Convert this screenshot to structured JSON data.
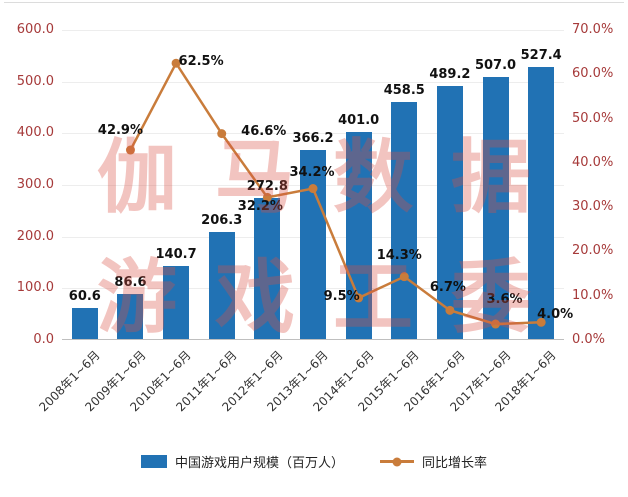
{
  "watermark": {
    "line1": "伽马数据",
    "line2": "游戏工委",
    "color": "#D94F43"
  },
  "chart_data": {
    "type": "combo-bar-line",
    "title": "",
    "categories": [
      "2008年1~6月",
      "2009年1~6月",
      "2010年1~6月",
      "2011年1~6月",
      "2012年1~6月",
      "2013年1~6月",
      "2014年1~6月",
      "2015年1~6月",
      "2016年1~6月",
      "2017年1~6月",
      "2018年1~6月"
    ],
    "series": [
      {
        "name": "中国游戏用户规模（百万人）",
        "chart_type": "bar",
        "axis": "left",
        "color": "#2172B4",
        "values": [
          60.6,
          86.6,
          140.7,
          206.3,
          272.8,
          366.2,
          401.0,
          458.5,
          489.2,
          507.0,
          527.4
        ],
        "labels": [
          "60.6",
          "86.6",
          "140.7",
          "206.3",
          "272.8",
          "366.2",
          "401.0",
          "458.5",
          "489.2",
          "507.0",
          "527.4"
        ]
      },
      {
        "name": "同比增长率",
        "chart_type": "line",
        "axis": "right",
        "color": "#C97C3B",
        "values": [
          null,
          42.9,
          62.5,
          46.6,
          32.2,
          34.2,
          9.5,
          14.3,
          6.7,
          3.6,
          4.0
        ],
        "labels": [
          null,
          "42.9%",
          "62.5%",
          "46.6%",
          "32.2%",
          "34.2%",
          "9.5%",
          "14.3%",
          "6.7%",
          "3.6%",
          "4.0%"
        ]
      }
    ],
    "left_axis": {
      "min": 0,
      "max": 600,
      "step": 100,
      "tick_labels": [
        "0.0",
        "100.0",
        "200.0",
        "300.0",
        "400.0",
        "500.0",
        "600.0"
      ],
      "color": "#A63A3A"
    },
    "right_axis": {
      "min": 0,
      "max": 70,
      "step": 10,
      "tick_labels": [
        "0.0%",
        "10.0%",
        "20.0%",
        "30.0%",
        "40.0%",
        "50.0%",
        "60.0%",
        "70.0%"
      ],
      "color": "#A63A3A"
    },
    "legend_position": "bottom",
    "grid": true
  }
}
